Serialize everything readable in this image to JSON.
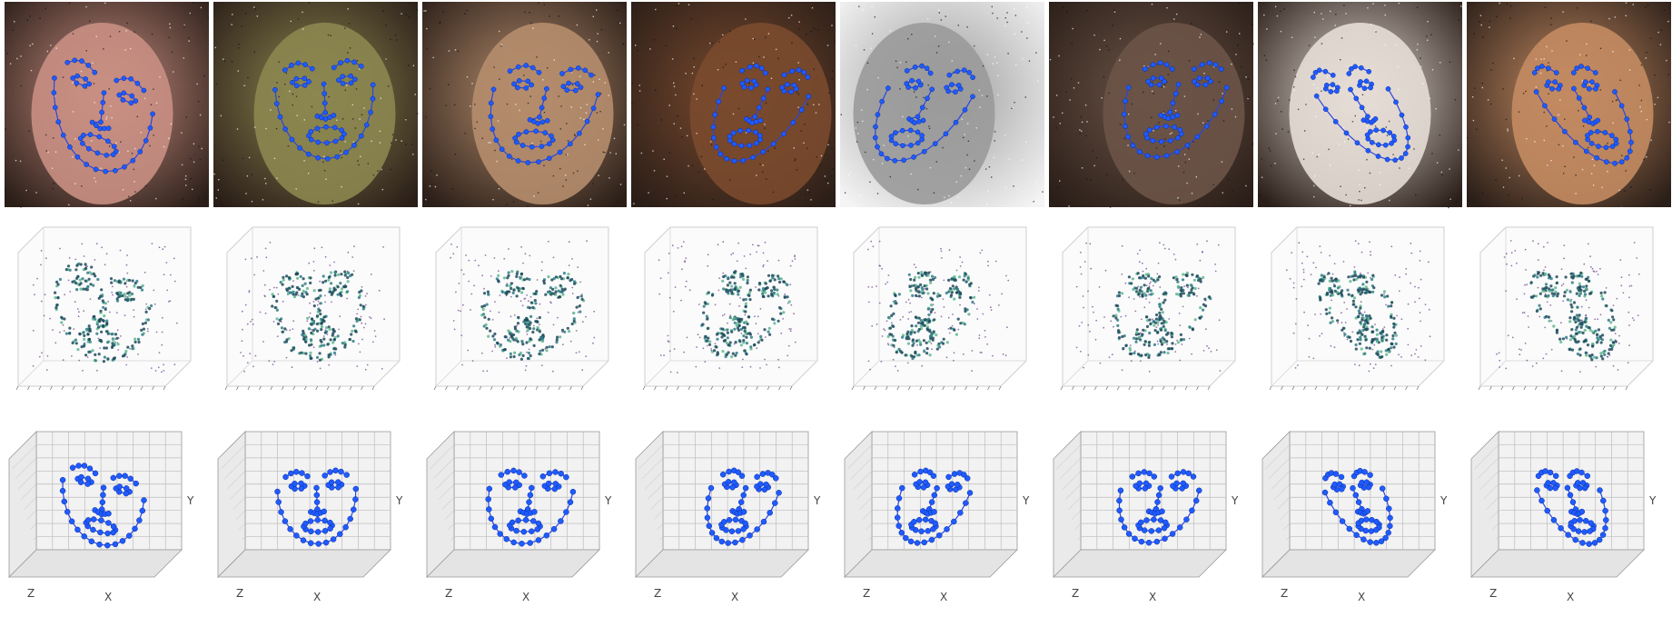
{
  "figure": {
    "rows": [
      "face-photo-with-2d-landmarks",
      "3d-point-cloud-heatmap",
      "3d-landmark-plot"
    ],
    "columns": 8,
    "colors": {
      "landmark": "#1f5bff",
      "landmark_line": "#2a47e0",
      "cloud_dark": "#1e4a5c",
      "cloud_mid": "#2f7c86",
      "cloud_light": "#5fb88f",
      "cloud_sparse": "#6b3d8a",
      "grid": "#bdbdbd",
      "pane": "#f2f2f2"
    },
    "photo_tones": [
      "#c98f83",
      "#8c8650",
      "#b58d6d",
      "#7a4a2e",
      "#9a9a9a",
      "#6b5447",
      "#e6ddd6",
      "#c38b62"
    ],
    "axis_labels": {
      "z": "Z",
      "x": "X",
      "y": "Y"
    }
  }
}
